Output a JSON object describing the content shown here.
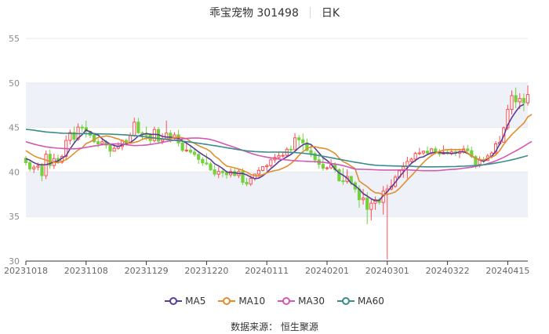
{
  "header": {
    "stock": "乖宝宠物 301498",
    "period": "日K"
  },
  "source": "数据来源： 恒生聚源",
  "colors": {
    "up": "#ff4d4f",
    "down": "#73d13d",
    "grid": "#e8e8e8",
    "band": "#eef2f8",
    "ma5": "#5b3c95",
    "ma10": "#e38d2c",
    "ma30": "#d457b4",
    "ma60": "#3a8c8c"
  },
  "chart_data": {
    "type": "candlestick",
    "ylim": [
      30,
      55
    ],
    "yticks": [
      30,
      35,
      40,
      45,
      50,
      55
    ],
    "xticks": [
      {
        "i": 0,
        "label": "20231018"
      },
      {
        "i": 15,
        "label": "20231108"
      },
      {
        "i": 30,
        "label": "20231129"
      },
      {
        "i": 45,
        "label": "20231220"
      },
      {
        "i": 60,
        "label": "20240111"
      },
      {
        "i": 75,
        "label": "20240201"
      },
      {
        "i": 90,
        "label": "20240301"
      },
      {
        "i": 105,
        "label": "20240322"
      },
      {
        "i": 120,
        "label": "20240415"
      }
    ],
    "ohlc": [
      [
        41.55,
        41.8,
        40.75,
        41.05
      ],
      [
        41.05,
        41.4,
        40.07,
        40.35
      ],
      [
        40.35,
        40.81,
        39.88,
        40.55
      ],
      [
        40.55,
        41.07,
        40.17,
        40.68
      ],
      [
        40.68,
        41.03,
        38.96,
        39.59
      ],
      [
        39.59,
        42.4,
        39.21,
        42.0
      ],
      [
        42.0,
        42.52,
        40.36,
        40.72
      ],
      [
        40.72,
        42.07,
        40.34,
        41.52
      ],
      [
        41.52,
        41.94,
        40.91,
        41.1
      ],
      [
        41.1,
        41.97,
        40.92,
        41.75
      ],
      [
        41.75,
        44.11,
        41.39,
        43.55
      ],
      [
        43.55,
        44.76,
        43.09,
        44.44
      ],
      [
        44.44,
        45.11,
        43.35,
        43.69
      ],
      [
        43.69,
        45.46,
        43.49,
        45.04
      ],
      [
        45.04,
        45.33,
        44.48,
        44.98
      ],
      [
        44.98,
        45.77,
        43.87,
        44.57
      ],
      [
        44.57,
        44.66,
        43.82,
        44.13
      ],
      [
        44.13,
        44.42,
        43.24,
        43.4
      ],
      [
        43.4,
        43.78,
        42.76,
        43.16
      ],
      [
        43.16,
        43.81,
        42.99,
        43.4
      ],
      [
        43.4,
        43.58,
        42.63,
        43.02
      ],
      [
        43.02,
        43.19,
        41.68,
        42.34
      ],
      [
        42.34,
        43.09,
        42.32,
        42.66
      ],
      [
        42.66,
        43.34,
        42.5,
        42.87
      ],
      [
        42.87,
        43.66,
        42.44,
        43.55
      ],
      [
        43.55,
        43.77,
        42.92,
        43.23
      ],
      [
        43.23,
        44.44,
        43.16,
        44.08
      ],
      [
        44.08,
        46.1,
        43.93,
        45.6
      ],
      [
        45.6,
        46.07,
        44.27,
        44.41
      ],
      [
        44.41,
        44.58,
        43.71,
        44.22
      ],
      [
        44.22,
        45.12,
        43.57,
        44.19
      ],
      [
        44.19,
        44.38,
        43.1,
        43.54
      ],
      [
        43.54,
        45.09,
        43.33,
        44.77
      ],
      [
        44.77,
        45.05,
        43.13,
        43.47
      ],
      [
        43.47,
        44.34,
        43.11,
        43.72
      ],
      [
        43.72,
        45.78,
        43.57,
        44.37
      ],
      [
        44.37,
        44.71,
        43.31,
        43.78
      ],
      [
        43.78,
        44.47,
        43.56,
        44.17
      ],
      [
        44.17,
        44.74,
        42.88,
        43.26
      ],
      [
        43.26,
        43.78,
        42.24,
        42.42
      ],
      [
        42.42,
        43.31,
        42.22,
        42.46
      ],
      [
        42.46,
        42.94,
        42.02,
        42.23
      ],
      [
        42.23,
        42.69,
        41.73,
        41.97
      ],
      [
        41.97,
        42.18,
        40.91,
        41.42
      ],
      [
        41.42,
        41.67,
        40.68,
        41.02
      ],
      [
        41.02,
        42.1,
        40.76,
        40.91
      ],
      [
        40.91,
        41.15,
        40.12,
        40.24
      ],
      [
        40.24,
        40.78,
        39.5,
        39.76
      ],
      [
        39.76,
        40.56,
        39.31,
        40.07
      ],
      [
        40.07,
        40.43,
        39.41,
        39.92
      ],
      [
        39.92,
        40.15,
        39.25,
        39.69
      ],
      [
        39.69,
        40.44,
        39.38,
        40.06
      ],
      [
        40.06,
        40.39,
        39.49,
        39.61
      ],
      [
        39.61,
        40.27,
        39.31,
        40.06
      ],
      [
        40.06,
        40.43,
        38.53,
        38.84
      ],
      [
        38.84,
        39.34,
        38.38,
        38.65
      ],
      [
        38.65,
        39.61,
        38.43,
        39.28
      ],
      [
        39.28,
        39.81,
        39.01,
        39.77
      ],
      [
        39.77,
        40.55,
        39.31,
        40.18
      ],
      [
        40.18,
        40.62,
        40.07,
        40.6
      ],
      [
        40.6,
        40.91,
        40.1,
        40.71
      ],
      [
        40.71,
        41.5,
        40.52,
        41.37
      ],
      [
        41.37,
        42.03,
        41.02,
        41.64
      ],
      [
        41.64,
        42.27,
        41.45,
        41.85
      ],
      [
        41.85,
        42.19,
        41.62,
        41.87
      ],
      [
        41.87,
        42.8,
        41.79,
        42.56
      ],
      [
        42.56,
        42.99,
        42.13,
        42.51
      ],
      [
        42.51,
        44.38,
        42.49,
        43.84
      ],
      [
        43.84,
        44.14,
        42.89,
        43.62
      ],
      [
        43.62,
        44.33,
        42.46,
        43.27
      ],
      [
        43.27,
        43.76,
        42.3,
        42.41
      ],
      [
        42.41,
        42.96,
        41.66,
        42.08
      ],
      [
        42.08,
        42.29,
        41.04,
        41.36
      ],
      [
        41.36,
        42.04,
        40.4,
        40.86
      ],
      [
        40.86,
        41.82,
        40.15,
        40.42
      ],
      [
        40.42,
        40.63,
        40.21,
        40.47
      ],
      [
        40.47,
        41.45,
        40.3,
        40.83
      ],
      [
        40.83,
        41.1,
        39.95,
        40.25
      ],
      [
        40.25,
        40.43,
        38.92,
        39.01
      ],
      [
        39.01,
        40.46,
        38.55,
        38.95
      ],
      [
        38.95,
        40.31,
        38.69,
        39.51
      ],
      [
        39.51,
        39.53,
        38.51,
        38.79
      ],
      [
        38.79,
        38.97,
        37.69,
        38.08
      ],
      [
        38.08,
        38.53,
        35.98,
        36.89
      ],
      [
        36.89,
        38.09,
        36.35,
        37.08
      ],
      [
        37.08,
        37.73,
        34.14,
        35.8
      ],
      [
        35.8,
        36.93,
        34.58,
        36.5
      ],
      [
        36.5,
        37.25,
        35.75,
        36.91
      ],
      [
        36.91,
        37.09,
        36.34,
        36.59
      ],
      [
        36.59,
        38.43,
        35.22,
        37.85
      ],
      [
        37.85,
        38.59,
        30.2,
        38.09
      ],
      [
        38.09,
        39.18,
        37.92,
        38.39
      ],
      [
        38.39,
        39.67,
        38.24,
        39.43
      ],
      [
        39.43,
        40.19,
        39.27,
        40.14
      ],
      [
        40.14,
        41.12,
        39.34,
        40.59
      ],
      [
        40.59,
        41.72,
        39.28,
        41.19
      ],
      [
        41.19,
        41.61,
        41.0,
        41.45
      ],
      [
        41.45,
        42.26,
        41.14,
        42.09
      ],
      [
        42.09,
        42.7,
        41.9,
        42.14
      ],
      [
        42.14,
        42.41,
        41.91,
        42.34
      ],
      [
        42.34,
        42.87,
        41.92,
        42.12
      ],
      [
        42.12,
        42.7,
        41.82,
        42.6
      ],
      [
        42.6,
        42.87,
        41.97,
        42.23
      ],
      [
        42.23,
        42.58,
        41.72,
        42.02
      ],
      [
        42.02,
        42.99,
        41.98,
        42.23
      ],
      [
        42.23,
        42.51,
        41.93,
        42.05
      ],
      [
        42.05,
        42.63,
        41.88,
        42.27
      ],
      [
        42.27,
        42.62,
        41.79,
        42.11
      ],
      [
        42.11,
        42.63,
        41.58,
        42.25
      ],
      [
        42.25,
        42.98,
        42.07,
        42.59
      ],
      [
        42.59,
        43.05,
        42.27,
        42.4
      ],
      [
        42.4,
        42.84,
        41.54,
        41.73
      ],
      [
        41.73,
        41.89,
        40.4,
        40.85
      ],
      [
        40.85,
        41.76,
        40.52,
        41.34
      ],
      [
        41.34,
        41.71,
        40.96,
        41.29
      ],
      [
        41.29,
        42.05,
        41.23,
        41.8
      ],
      [
        41.8,
        42.35,
        41.53,
        42.13
      ],
      [
        42.13,
        43.47,
        41.87,
        43.16
      ],
      [
        43.16,
        44.06,
        42.96,
        43.35
      ],
      [
        43.35,
        45.11,
        43.31,
        44.97
      ],
      [
        44.97,
        47.55,
        44.7,
        47.03
      ],
      [
        47.03,
        49.16,
        46.47,
        48.58
      ],
      [
        48.58,
        49.48,
        47.16,
        47.88
      ],
      [
        47.88,
        48.84,
        47.07,
        48.26
      ],
      [
        48.26,
        48.81,
        46.82,
        47.77
      ],
      [
        47.77,
        49.73,
        47.46,
        48.7
      ]
    ],
    "series": [
      {
        "name": "MA5",
        "color": "#5b3c95",
        "values": [
          41.5,
          41.33,
          41.06,
          40.85,
          40.81,
          40.83,
          40.94,
          41.14,
          41.24,
          41.56,
          41.82,
          42.58,
          43.23,
          43.81,
          44.18,
          44.73,
          44.51,
          44.28,
          44.15,
          43.73,
          43.4,
          43.14,
          42.98,
          42.87,
          43.03,
          43.16,
          43.31,
          43.63,
          44.05,
          44.2,
          44.34,
          44.23,
          44.23,
          44.2,
          44.0,
          43.93,
          43.92,
          43.84,
          43.81,
          43.48,
          43.25,
          42.95,
          42.61,
          42.26,
          41.95,
          41.68,
          41.39,
          40.93,
          40.69,
          40.39,
          40.02,
          39.92,
          39.92,
          39.83,
          39.84,
          39.67,
          39.44,
          39.25,
          39.31,
          39.58,
          39.95,
          40.38,
          40.75,
          41.17,
          41.44,
          41.71,
          41.96,
          42.32,
          42.74,
          43.06,
          43.21,
          43.09,
          42.66,
          42.14,
          41.6,
          41.3,
          40.89,
          40.33,
          39.89,
          39.64,
          39.31,
          38.75,
          38.47,
          38.07,
          37.57,
          37.31,
          37.0,
          36.77,
          36.82,
          37.35,
          37.8,
          38.3,
          38.84,
          39.45,
          39.98,
          40.47,
          40.97,
          41.3,
          41.62,
          41.71,
          41.96,
          42.15,
          42.2,
          42.2,
          42.12,
          42.14,
          42.09,
          42.12,
          42.27,
          42.28,
          42.09,
          41.8,
          41.55,
          41.37,
          41.18,
          41.48,
          41.77,
          42.31,
          43.14,
          44.05,
          45.28,
          46.1,
          46.78,
          47.37,
          47.6
        ]
      },
      {
        "name": "MA10",
        "color": "#e38d2c",
        "values": [
          42.4,
          42.1,
          41.82,
          41.62,
          41.49,
          41.34,
          41.2,
          41.1,
          41.05,
          41.2,
          41.37,
          41.7,
          42.09,
          42.47,
          42.71,
          43.2,
          43.38,
          43.64,
          43.89,
          43.96,
          44.05,
          43.99,
          43.84,
          43.71,
          43.53,
          43.28,
          43.23,
          43.32,
          43.44,
          43.67,
          43.8,
          43.79,
          43.81,
          43.76,
          43.66,
          43.68,
          43.74,
          43.87,
          43.92,
          43.84,
          43.74,
          43.44,
          43.22,
          42.96,
          42.76,
          42.57,
          42.3,
          41.8,
          41.49,
          41.03,
          40.67,
          40.57,
          40.47,
          40.33,
          40.19,
          39.97,
          39.73,
          39.59,
          39.57,
          39.71,
          39.9,
          40.05,
          40.16,
          40.25,
          40.43,
          40.64,
          40.95,
          41.34,
          41.87,
          42.3,
          42.61,
          42.83,
          42.84,
          42.73,
          42.67,
          42.58,
          42.34,
          42.09,
          41.57,
          41.16,
          40.96,
          40.66,
          40.38,
          38.99,
          38.66,
          38.36,
          37.96,
          37.68,
          37.63,
          37.45,
          37.48,
          37.61,
          37.76,
          38.15,
          38.63,
          39.13,
          39.57,
          40.07,
          40.59,
          41.07,
          41.5,
          41.83,
          42.12,
          42.32,
          42.46,
          42.52,
          42.53,
          42.51,
          42.52,
          42.49,
          42.15,
          41.79,
          41.54,
          41.41,
          41.34,
          41.56,
          41.67,
          41.9,
          42.42,
          43.11,
          43.68,
          44.2,
          44.63,
          45.08,
          45.49,
          46.18,
          46.48
        ]
      },
      {
        "name": "MA30",
        "color": "#d457b4",
        "values": [
          43.4,
          43.27,
          43.13,
          43.02,
          42.92,
          42.83,
          42.77,
          42.72,
          42.68,
          42.65,
          42.62,
          42.61,
          42.61,
          42.64,
          42.69,
          42.76,
          42.84,
          42.92,
          42.99,
          43.06,
          43.11,
          43.14,
          43.16,
          43.15,
          43.14,
          43.08,
          43.01,
          42.97,
          42.98,
          43.0,
          43.04,
          43.1,
          43.16,
          43.25,
          43.33,
          43.42,
          43.5,
          43.58,
          43.64,
          43.72,
          43.77,
          43.8,
          43.82,
          43.81,
          43.78,
          43.72,
          43.64,
          43.52,
          43.37,
          43.21,
          43.06,
          42.91,
          42.76,
          42.6,
          42.44,
          42.27,
          42.11,
          41.96,
          41.85,
          41.75,
          41.67,
          41.59,
          41.52,
          41.46,
          41.4,
          41.36,
          41.31,
          41.27,
          41.24,
          41.22,
          41.2,
          41.18,
          41.16,
          41.13,
          41.09,
          41.03,
          40.97,
          40.9,
          40.81,
          40.72,
          40.6,
          40.46,
          40.33,
          40.32,
          40.3,
          40.28,
          40.27,
          40.25,
          40.23,
          40.22,
          40.22,
          40.22,
          40.22,
          40.23,
          40.24,
          40.25,
          40.22,
          40.19,
          40.17,
          40.15,
          40.15,
          40.15,
          40.15,
          40.18,
          40.22,
          40.26,
          40.29,
          40.32,
          40.36,
          40.43,
          40.48,
          40.55,
          40.63,
          40.72,
          40.82,
          40.95,
          41.09,
          41.25,
          41.44,
          41.65,
          41.89,
          42.13,
          42.37,
          42.62,
          42.89,
          43.18,
          43.43
        ]
      },
      {
        "name": "MA60",
        "color": "#3a8c8c",
        "values": [
          44.8,
          44.75,
          44.69,
          44.62,
          44.56,
          44.5,
          44.46,
          44.43,
          44.39,
          44.36,
          44.35,
          44.33,
          44.32,
          44.31,
          44.31,
          44.31,
          44.3,
          44.3,
          44.29,
          44.28,
          44.26,
          44.25,
          44.23,
          44.21,
          44.19,
          44.16,
          44.12,
          44.09,
          44.05,
          43.99,
          43.94,
          43.88,
          43.83,
          43.77,
          43.72,
          43.67,
          43.61,
          43.56,
          43.51,
          43.46,
          43.41,
          43.35,
          43.29,
          43.23,
          43.17,
          43.1,
          43.03,
          42.96,
          42.89,
          42.81,
          42.73,
          42.66,
          42.58,
          42.5,
          42.44,
          42.38,
          42.34,
          42.3,
          42.27,
          42.25,
          42.24,
          42.24,
          42.24,
          42.24,
          42.23,
          42.22,
          42.2,
          42.18,
          42.15,
          42.11,
          42.06,
          41.99,
          41.92,
          41.85,
          41.77,
          41.69,
          41.6,
          41.52,
          41.43,
          41.35,
          41.27,
          41.18,
          41.1,
          41.03,
          40.96,
          40.88,
          40.82,
          40.77,
          40.74,
          40.72,
          40.7,
          40.69,
          40.68,
          40.67,
          40.66,
          40.65,
          40.64,
          40.62,
          40.6,
          40.59,
          40.58,
          40.58,
          40.58,
          40.59,
          40.59,
          40.6,
          40.61,
          40.62,
          40.64,
          40.65,
          40.68,
          40.7,
          40.74,
          40.77,
          40.81,
          40.86,
          40.93,
          41.01,
          41.09,
          41.18,
          41.27,
          41.37,
          41.48,
          41.6,
          41.72,
          41.85
        ]
      }
    ]
  }
}
